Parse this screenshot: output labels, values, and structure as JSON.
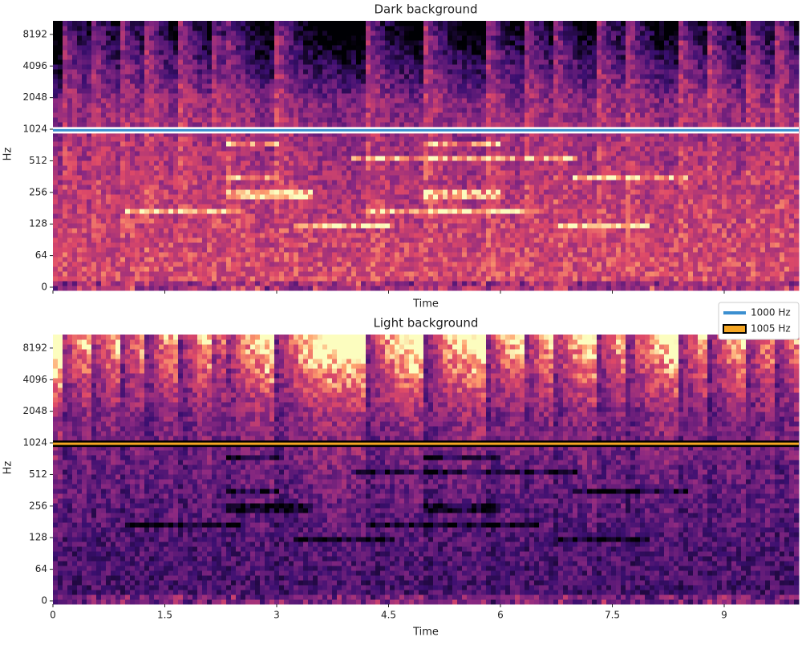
{
  "chart_data": [
    {
      "type": "spectrogram",
      "title": "Dark background",
      "xlabel": "Time",
      "ylabel": "Hz",
      "colormap": "magma",
      "show_xticklabels": false,
      "xlim": [
        0,
        10
      ],
      "xticks": [
        0,
        1.5,
        3,
        4.5,
        6,
        7.5,
        9
      ],
      "yscale": "symlog",
      "linthresh": 64,
      "ylim": [
        0,
        11025
      ],
      "yticks": [
        0,
        64,
        128,
        256,
        512,
        1024,
        2048,
        4096,
        8192
      ],
      "series": [
        {
          "name": "1000 Hz",
          "color": "#3b8fd0",
          "edgecolor": "#ffffff",
          "values": [
            1000
          ]
        }
      ]
    },
    {
      "type": "spectrogram",
      "title": "Light background",
      "xlabel": "Time",
      "ylabel": "Hz",
      "colormap": "magma_r",
      "show_xticklabels": true,
      "xlim": [
        0,
        10
      ],
      "xticks": [
        0,
        1.5,
        3,
        4.5,
        6,
        7.5,
        9
      ],
      "yscale": "symlog",
      "linthresh": 64,
      "ylim": [
        0,
        11025
      ],
      "yticks": [
        0,
        64,
        128,
        256,
        512,
        1024,
        2048,
        4096,
        8192
      ],
      "series": [
        {
          "name": "1005 Hz",
          "color": "#f5a623",
          "edgecolor": "#000000",
          "values": [
            1005
          ]
        }
      ],
      "legend": "upper right"
    }
  ]
}
